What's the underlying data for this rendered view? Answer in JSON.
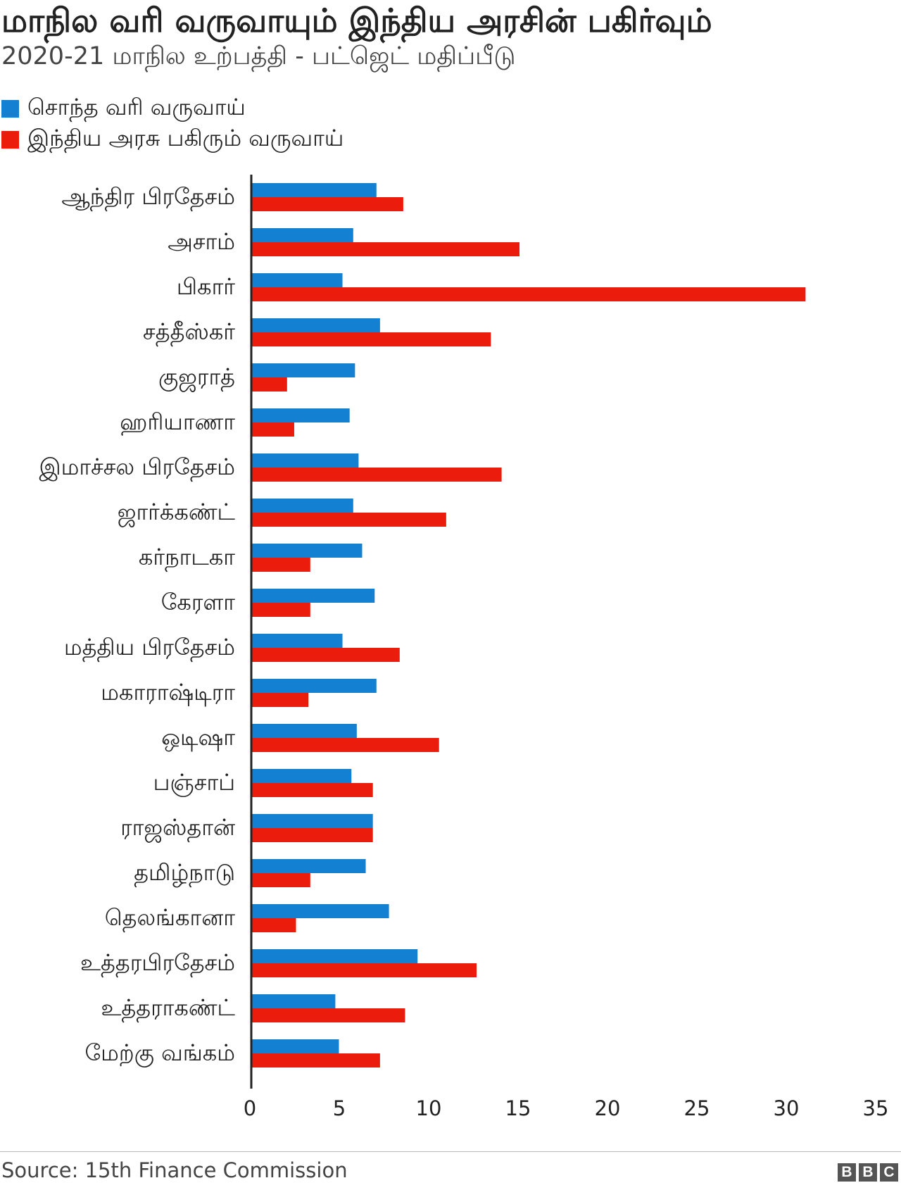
{
  "title": "மாநில வரி வருவாயும் இந்திய அரசின் பகிர்வும்",
  "subtitle": "2020-21 மாநில உற்பத்தி - பட்ஜெட் மதிப்பீடு",
  "source": "Source: 15th Finance Commission",
  "logo": [
    "B",
    "B",
    "C"
  ],
  "colors": {
    "own_tax": "#1380d1",
    "central_share": "#ec1c0d"
  },
  "chart_data": {
    "type": "bar",
    "orientation": "horizontal",
    "categories": [
      "ஆந்திர பிரதேசம்",
      "அசாம்",
      "பிகார்",
      "சத்தீஸ்கர்",
      "குஜராத்",
      "ஹரியாணா",
      "இமாச்சல பிரதேசம்",
      "ஜார்க்கண்ட்",
      "கர்நாடகா",
      "கேரளா",
      "மத்திய பிரதேசம்",
      "மகாராஷ்டிரா",
      "ஒடிஷா",
      "பஞ்சாப்",
      "ராஜஸ்தான்",
      "தமிழ்நாடு",
      "தெலங்கானா",
      "உத்தரபிரதேசம்",
      "உத்தராகண்ட்",
      "மேற்கு வங்கம்"
    ],
    "series": [
      {
        "name": "சொந்த வரி வருவாய்",
        "color": "#1380d1",
        "values": [
          7.0,
          5.7,
          5.1,
          7.2,
          5.8,
          5.5,
          6.0,
          5.7,
          6.2,
          6.9,
          5.1,
          7.0,
          5.9,
          5.6,
          6.8,
          6.4,
          7.7,
          9.3,
          4.7,
          4.9
        ]
      },
      {
        "name": "இந்திய அரசு பகிரும் வருவாய்",
        "color": "#ec1c0d",
        "values": [
          8.5,
          15.0,
          31.0,
          13.4,
          2.0,
          2.4,
          14.0,
          10.9,
          3.3,
          3.3,
          8.3,
          3.2,
          10.5,
          6.8,
          6.8,
          3.3,
          2.5,
          12.6,
          8.6,
          7.2
        ]
      }
    ],
    "xlim": [
      0,
      35
    ],
    "xticks": [
      0,
      5,
      10,
      15,
      20,
      25,
      30,
      35
    ],
    "grid": false,
    "legend": "top-left"
  }
}
